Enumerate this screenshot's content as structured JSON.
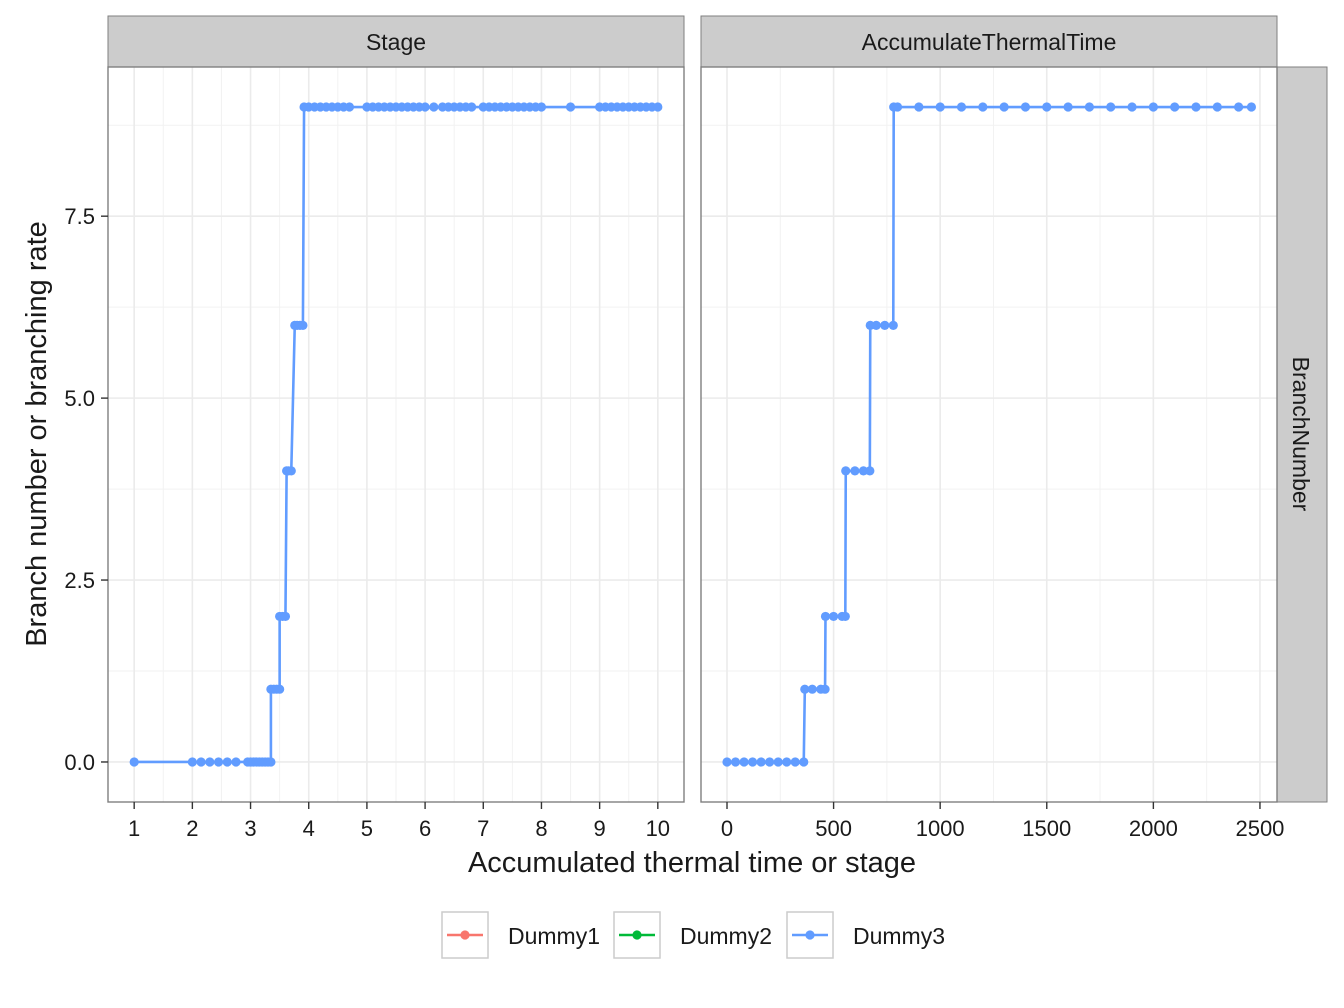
{
  "strips": {
    "left": "Stage",
    "right": "AccumulateThermalTime",
    "row": "BranchNumber"
  },
  "axes": {
    "xlabel": "Accumulated thermal time or stage",
    "ylabel": "Branch number or branching rate",
    "y_ticks": [
      "0.0",
      "2.5",
      "5.0",
      "7.5"
    ],
    "x_ticks_left": [
      "1",
      "2",
      "3",
      "4",
      "5",
      "6",
      "7",
      "8",
      "9",
      "10"
    ],
    "x_ticks_right": [
      "0",
      "500",
      "1000",
      "1500",
      "2000",
      "2500"
    ]
  },
  "legend": {
    "items": [
      {
        "label": "Dummy1",
        "color": "#F8766D"
      },
      {
        "label": "Dummy2",
        "color": "#00BA38"
      },
      {
        "label": "Dummy3",
        "color": "#619CFF"
      }
    ]
  },
  "chart_data": [
    {
      "type": "line",
      "panel": "Stage",
      "xlim": [
        0.55,
        10.45
      ],
      "ylim": [
        -0.55,
        9.55
      ],
      "grid": true,
      "series": [
        {
          "name": "Dummy3",
          "color": "#619CFF",
          "x": [
            1,
            2,
            2.15,
            2.3,
            2.45,
            2.6,
            2.75,
            2.95,
            3.0,
            3.05,
            3.1,
            3.15,
            3.2,
            3.25,
            3.3,
            3.35,
            3.35,
            3.4,
            3.45,
            3.5,
            3.5,
            3.55,
            3.6,
            3.62,
            3.65,
            3.7,
            3.76,
            3.8,
            3.85,
            3.9,
            3.92,
            4.0,
            4.1,
            4.2,
            4.3,
            4.4,
            4.5,
            4.6,
            4.7,
            5.0,
            5.1,
            5.2,
            5.3,
            5.4,
            5.5,
            5.6,
            5.7,
            5.8,
            5.9,
            6.0,
            6.15,
            6.3,
            6.4,
            6.5,
            6.6,
            6.7,
            6.8,
            7.0,
            7.1,
            7.2,
            7.3,
            7.4,
            7.5,
            7.6,
            7.7,
            7.8,
            7.9,
            8.0,
            8.5,
            9.0,
            9.1,
            9.2,
            9.3,
            9.4,
            9.5,
            9.6,
            9.7,
            9.8,
            9.9,
            10.0
          ],
          "y": [
            0,
            0,
            0,
            0,
            0,
            0,
            0,
            0,
            0,
            0,
            0,
            0,
            0,
            0,
            0,
            0,
            1,
            1,
            1,
            1,
            2,
            2,
            2,
            4,
            4,
            4,
            6,
            6,
            6,
            6,
            9,
            9,
            9,
            9,
            9,
            9,
            9,
            9,
            9,
            9,
            9,
            9,
            9,
            9,
            9,
            9,
            9,
            9,
            9,
            9,
            9,
            9,
            9,
            9,
            9,
            9,
            9,
            9,
            9,
            9,
            9,
            9,
            9,
            9,
            9,
            9,
            9,
            9,
            9,
            9,
            9,
            9,
            9,
            9,
            9,
            9,
            9,
            9,
            9,
            9
          ]
        }
      ]
    },
    {
      "type": "line",
      "panel": "AccumulateThermalTime",
      "xlim": [
        -122,
        2580
      ],
      "ylim": [
        -0.55,
        9.55
      ],
      "grid": true,
      "series": [
        {
          "name": "Dummy3",
          "color": "#619CFF",
          "x": [
            0,
            40,
            80,
            120,
            160,
            200,
            240,
            280,
            320,
            360,
            365,
            400,
            440,
            460,
            462,
            500,
            540,
            555,
            557,
            600,
            640,
            670,
            672,
            700,
            740,
            780,
            782,
            800,
            900,
            1000,
            1100,
            1200,
            1300,
            1400,
            1500,
            1600,
            1700,
            1800,
            1900,
            2000,
            2100,
            2200,
            2300,
            2400,
            2460
          ],
          "y": [
            0,
            0,
            0,
            0,
            0,
            0,
            0,
            0,
            0,
            0,
            1,
            1,
            1,
            1,
            2,
            2,
            2,
            2,
            4,
            4,
            4,
            4,
            6,
            6,
            6,
            6,
            9,
            9,
            9,
            9,
            9,
            9,
            9,
            9,
            9,
            9,
            9,
            9,
            9,
            9,
            9,
            9,
            9,
            9,
            9
          ]
        }
      ]
    }
  ]
}
